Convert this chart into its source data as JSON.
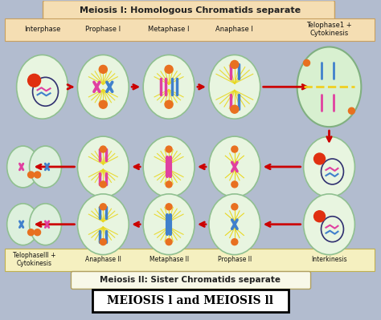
{
  "bg_color": "#b2bccf",
  "fig_width": 4.74,
  "fig_height": 3.99,
  "title_meiosis1": "Meiosis I: Homologous Chromatids separate",
  "title_meiosis2": "Meiosis II: Sister Chromatids separate",
  "bottom_title": "MEIOSIS l and MEIOSIS ll",
  "meiosis1_labels": [
    "Interphase",
    "Prophase I",
    "Metaphase I",
    "Anaphase I",
    "Telophase1 +\nCytokinesis"
  ],
  "meiosis2_labels": [
    "TelophasellI +\nCytokinesis",
    "Anaphase II",
    "Metaphase II",
    "Prophase II",
    "Interkinesis"
  ],
  "header1_color": "#f5deb3",
  "header2_color": "#f5f0c0",
  "cell_fill": "#e8f5e0",
  "arrow_color": "#cc0000",
  "chrom_color1": "#e040a0",
  "chrom_color2": "#4080cc",
  "spindle_color": "#e8d820",
  "nucleus_color": "#303070",
  "orange_spot": "#e87020"
}
